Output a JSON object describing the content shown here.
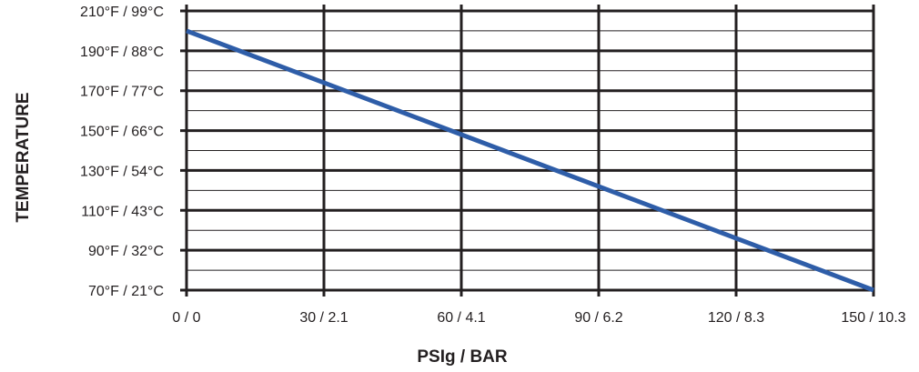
{
  "chart_data": {
    "type": "line",
    "title": "",
    "xlabel": "PSIg / BAR",
    "ylabel": "TEMPERATURE",
    "x_ticks": [
      {
        "value": 0,
        "label": "0 / 0"
      },
      {
        "value": 30,
        "label": "30 / 2.1"
      },
      {
        "value": 60,
        "label": "60 / 4.1"
      },
      {
        "value": 90,
        "label": "90 / 6.2"
      },
      {
        "value": 120,
        "label": "120 / 8.3"
      },
      {
        "value": 150,
        "label": "150 / 10.3"
      }
    ],
    "y_ticks": [
      {
        "value": 70,
        "label": "70°F / 21°C"
      },
      {
        "value": 90,
        "label": "90°F / 32°C"
      },
      {
        "value": 110,
        "label": "110°F / 43°C"
      },
      {
        "value": 130,
        "label": "130°F / 54°C"
      },
      {
        "value": 150,
        "label": "150°F / 66°C"
      },
      {
        "value": 170,
        "label": "170°F / 77°C"
      },
      {
        "value": 190,
        "label": "190°F / 88°C"
      },
      {
        "value": 210,
        "label": "210°F / 99°C"
      }
    ],
    "xlim": [
      0,
      150
    ],
    "ylim": [
      70,
      210
    ],
    "minor_grid_step": 10,
    "grid": true,
    "series": [
      {
        "color": "#2e5da8",
        "points": [
          {
            "x": 0,
            "y": 200
          },
          {
            "x": 150,
            "y": 70
          }
        ]
      }
    ]
  }
}
